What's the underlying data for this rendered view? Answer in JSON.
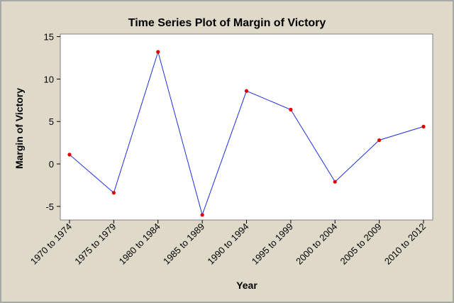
{
  "colors": {
    "background": "#ded9c9",
    "plot_area": "#ffffff",
    "line": "#1f2fdc",
    "marker": "#e00000",
    "frame_border": "#a9a9a9"
  },
  "chart_data": {
    "type": "line",
    "title": "Time Series Plot of Margin of Victory",
    "xlabel": "Year",
    "ylabel": "Margin of Victory",
    "categories": [
      "1970 to 1974",
      "1975 to 1979",
      "1980 to 1984",
      "1985 to 1989",
      "1990 to 1994",
      "1995 to 1999",
      "2000 to 2004",
      "2005 to 2009",
      "2010 to 2012"
    ],
    "series": [
      {
        "values": [
          1.1,
          -3.4,
          13.2,
          -6.0,
          8.6,
          6.4,
          -2.1,
          2.8,
          4.4
        ]
      }
    ],
    "ylim": [
      -6.6,
      15.3
    ],
    "yticks": [
      -5,
      0,
      5,
      10,
      15
    ],
    "grid": false,
    "markers": true
  }
}
